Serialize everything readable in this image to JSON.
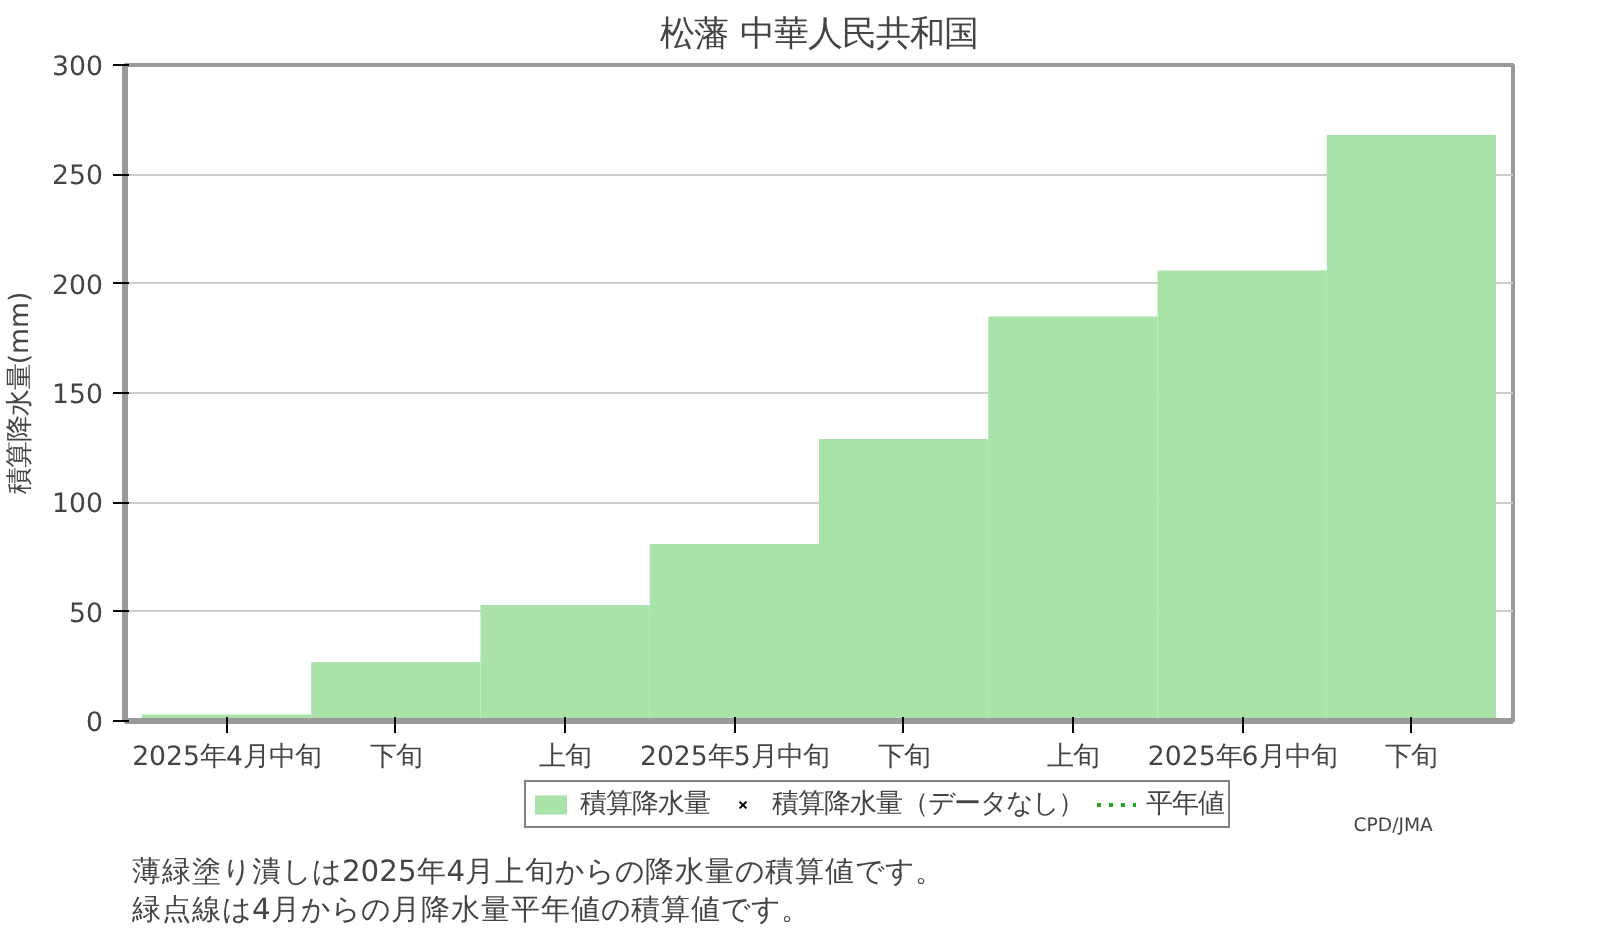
{
  "chart_data": {
    "type": "bar",
    "title": "松藩 中華人民共和国",
    "ylabel": "積算降水量(mm)",
    "categories": [
      "2025年4月中旬",
      "下旬",
      "上旬",
      "2025年5月中旬",
      "下旬",
      "上旬",
      "2025年6月中旬",
      "下旬"
    ],
    "series": [
      {
        "name": "積算降水量",
        "color": "#aae3a9",
        "values": [
          3,
          27,
          53,
          81,
          129,
          185,
          206,
          268
        ]
      },
      {
        "name": "積算降水量（データなし）",
        "color": "#000000",
        "type": "scatter",
        "marker": "cross",
        "values": [
          null,
          null,
          null,
          null,
          null,
          null,
          null,
          null
        ]
      },
      {
        "name": "平年値",
        "color": "#22aa22",
        "type": "line",
        "line_style": "dotted",
        "values": [
          null,
          null,
          null,
          null,
          null,
          null,
          null,
          null
        ]
      }
    ],
    "ylim": [
      0,
      300
    ],
    "yticks": [
      0,
      50,
      100,
      150,
      200,
      250,
      300
    ],
    "grid": "y",
    "legend": "bottom",
    "annotations": [
      "CPD/JMA",
      "薄緑塗り潰しは2025年4月上旬からの降水量の積算値です。",
      "緑点線は4月からの月降水量平年値の積算値です。"
    ]
  }
}
